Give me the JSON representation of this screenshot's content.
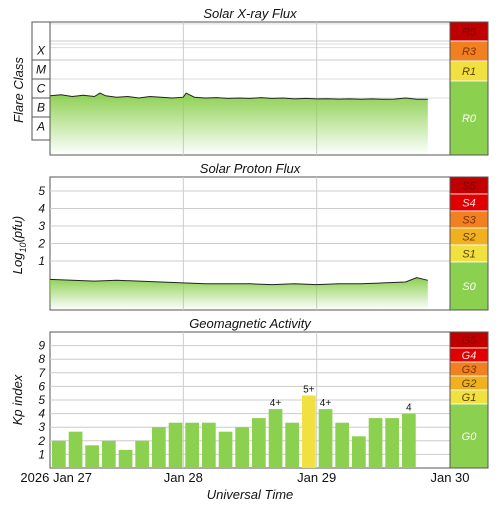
{
  "titles": {
    "xray": "Solar X-ray Flux",
    "proton": "Solar Proton Flux",
    "geomag": "Geomagnetic Activity"
  },
  "axis_labels": {
    "xray_y": "Flare Class",
    "proton_y_prefix": "Log",
    "proton_y_sub": "10",
    "proton_y_suffix": "(pfu)",
    "geomag_y": "Kp index",
    "x": "Universal Time"
  },
  "x_ticks": [
    "2026 Jan 27",
    "Jan 28",
    "Jan 29",
    "Jan 30"
  ],
  "xray_class_labels": [
    "X",
    "M",
    "C",
    "B",
    "A"
  ],
  "proton_ticks": [
    "5",
    "4",
    "3",
    "2",
    "1"
  ],
  "kp_ticks": [
    "9",
    "8",
    "7",
    "6",
    "5",
    "4",
    "3",
    "2",
    "1"
  ],
  "scales": {
    "radio": [
      {
        "label": "R5",
        "color": "#c00000",
        "text_color": "#800000"
      },
      {
        "label": "R3",
        "color": "#f08020",
        "text_color": "#803000"
      },
      {
        "label": "R1",
        "color": "#f0e040",
        "text_color": "#604000"
      },
      {
        "label": "R0",
        "color": "#8cd050",
        "text_color": "#ffffff"
      }
    ],
    "radiation": [
      {
        "label": "S5",
        "color": "#c00000",
        "text_color": "#800000"
      },
      {
        "label": "S4",
        "color": "#e00000",
        "text_color": "#ffe0e0"
      },
      {
        "label": "S3",
        "color": "#f08020",
        "text_color": "#803000"
      },
      {
        "label": "S2",
        "color": "#f0b020",
        "text_color": "#604000"
      },
      {
        "label": "S1",
        "color": "#f0e040",
        "text_color": "#604000"
      },
      {
        "label": "S0",
        "color": "#8cd050",
        "text_color": "#ffffff"
      }
    ],
    "geomagnetic": [
      {
        "label": "G5",
        "color": "#c00000",
        "text_color": "#800000"
      },
      {
        "label": "G4",
        "color": "#e00000",
        "text_color": "#ffe0e0"
      },
      {
        "label": "G3",
        "color": "#f08020",
        "text_color": "#803000"
      },
      {
        "label": "G2",
        "color": "#f0b020",
        "text_color": "#604000"
      },
      {
        "label": "G1",
        "color": "#f0e040",
        "text_color": "#604000"
      },
      {
        "label": "G0",
        "color": "#8cd050",
        "text_color": "#ffffff"
      }
    ]
  },
  "chart_data": [
    {
      "type": "area",
      "title": "Solar X-ray Flux",
      "ylabel": "Flare Class",
      "xlabel": "Universal Time",
      "y_scale": "log",
      "ylim_flux_w_m2": [
        1e-09,
        0.01
      ],
      "x_start": "2026-01-27 00:00",
      "x_end": "2026-01-30 00:00",
      "grid": true,
      "fill_color": "#8cd050",
      "series": [
        {
          "x": [
            "2026-01-27 00:00",
            "2026-01-27 02:00",
            "2026-01-27 04:00",
            "2026-01-27 06:00",
            "2026-01-27 08:00",
            "2026-01-27 09:00",
            "2026-01-27 10:00",
            "2026-01-27 12:00",
            "2026-01-27 14:00",
            "2026-01-27 16:00",
            "2026-01-27 18:00",
            "2026-01-27 20:00",
            "2026-01-27 22:00",
            "2026-01-28 00:00",
            "2026-01-28 00:30",
            "2026-01-28 02:00",
            "2026-01-28 04:00",
            "2026-01-28 06:00",
            "2026-01-28 08:00",
            "2026-01-28 10:00",
            "2026-01-28 12:00",
            "2026-01-28 14:00",
            "2026-01-28 16:00",
            "2026-01-28 18:00",
            "2026-01-28 20:00",
            "2026-01-28 22:00",
            "2026-01-29 00:00",
            "2026-01-29 02:00",
            "2026-01-29 04:00",
            "2026-01-29 06:00",
            "2026-01-29 08:00",
            "2026-01-29 10:00",
            "2026-01-29 12:00",
            "2026-01-29 14:00",
            "2026-01-29 16:00",
            "2026-01-29 18:00",
            "2026-01-29 20:00"
          ],
          "values": [
            1.3e-06,
            1.5e-06,
            1.2e-06,
            1.4e-06,
            1.2e-06,
            1.8e-06,
            1.3e-06,
            1.1e-06,
            1.2e-06,
            1e-06,
            1.2e-06,
            1.1e-06,
            1e-06,
            1.1e-06,
            1.8e-06,
            1.1e-06,
            1e-06,
            1.05e-06,
            9.5e-07,
            1e-06,
            9.5e-07,
            1.05e-06,
            9.5e-07,
            1e-06,
            9e-07,
            9.5e-07,
            9e-07,
            9.2e-07,
            8.8e-07,
            9e-07,
            8.5e-07,
            9e-07,
            8.5e-07,
            8.8e-07,
            1e-06,
            8.5e-07,
            8.5e-07
          ]
        }
      ]
    },
    {
      "type": "area",
      "title": "Solar Proton Flux",
      "ylabel": "Log10(pfu)",
      "xlabel": "Universal Time",
      "ylim": [
        -1.8,
        5.8
      ],
      "x_start": "2026-01-27 00:00",
      "x_end": "2026-01-30 00:00",
      "grid": true,
      "fill_color": "#8cd050",
      "series": [
        {
          "x": [
            "2026-01-27 00:00",
            "2026-01-27 04:00",
            "2026-01-27 08:00",
            "2026-01-27 12:00",
            "2026-01-27 16:00",
            "2026-01-27 20:00",
            "2026-01-28 00:00",
            "2026-01-28 04:00",
            "2026-01-28 08:00",
            "2026-01-28 12:00",
            "2026-01-28 16:00",
            "2026-01-28 20:00",
            "2026-01-29 00:00",
            "2026-01-29 04:00",
            "2026-01-29 08:00",
            "2026-01-29 12:00",
            "2026-01-29 16:00",
            "2026-01-29 18:00",
            "2026-01-29 20:00"
          ],
          "values": [
            -0.05,
            -0.1,
            -0.15,
            -0.1,
            -0.15,
            -0.2,
            -0.25,
            -0.3,
            -0.3,
            -0.3,
            -0.35,
            -0.3,
            -0.35,
            -0.3,
            -0.3,
            -0.25,
            -0.2,
            0.05,
            -0.1
          ]
        }
      ]
    },
    {
      "type": "bar",
      "title": "Geomagnetic Activity",
      "ylabel": "Kp index",
      "xlabel": "Universal Time",
      "ylim": [
        0,
        10
      ],
      "x_start": "2026-01-27 00:00",
      "x_end": "2026-01-30 00:00",
      "bar_interval_hours": 3,
      "grid": true,
      "categories": [
        "2026-01-27 00:00",
        "2026-01-27 03:00",
        "2026-01-27 06:00",
        "2026-01-27 09:00",
        "2026-01-27 12:00",
        "2026-01-27 15:00",
        "2026-01-27 18:00",
        "2026-01-27 21:00",
        "2026-01-28 00:00",
        "2026-01-28 03:00",
        "2026-01-28 06:00",
        "2026-01-28 09:00",
        "2026-01-28 12:00",
        "2026-01-28 15:00",
        "2026-01-28 18:00",
        "2026-01-28 21:00",
        "2026-01-29 00:00",
        "2026-01-29 03:00",
        "2026-01-29 06:00",
        "2026-01-29 09:00",
        "2026-01-29 12:00",
        "2026-01-29 15:00"
      ],
      "values": [
        2.0,
        2.67,
        1.67,
        2.0,
        1.33,
        2.0,
        3.0,
        3.33,
        3.33,
        3.33,
        2.67,
        3.0,
        3.67,
        4.33,
        3.33,
        5.33,
        4.33,
        3.33,
        2.33,
        3.67,
        3.67,
        4.0
      ],
      "labels": [
        "",
        "",
        "",
        "",
        "",
        "",
        "",
        "",
        "",
        "",
        "",
        "",
        "",
        "4+",
        "",
        "5+",
        "4+",
        "",
        "",
        "",
        "",
        "4"
      ],
      "colors": [
        "#8cd050",
        "#8cd050",
        "#8cd050",
        "#8cd050",
        "#8cd050",
        "#8cd050",
        "#8cd050",
        "#8cd050",
        "#8cd050",
        "#8cd050",
        "#8cd050",
        "#8cd050",
        "#8cd050",
        "#8cd050",
        "#8cd050",
        "#f0e040",
        "#8cd050",
        "#8cd050",
        "#8cd050",
        "#8cd050",
        "#8cd050",
        "#8cd050"
      ]
    }
  ]
}
